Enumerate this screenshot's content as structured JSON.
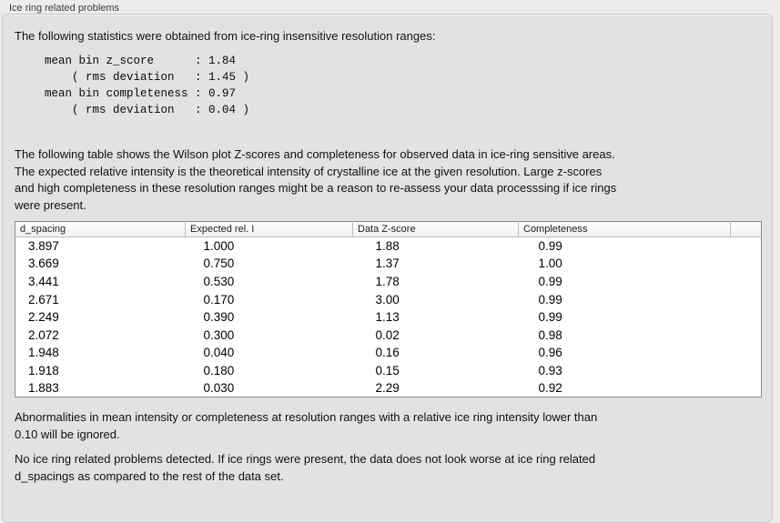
{
  "panel": {
    "title": "Ice ring related problems"
  },
  "colors": {
    "page_bg": "#ececec",
    "panel_bg": "#e2e2e2",
    "table_border": "#8b8b8b",
    "table_bg": "#ffffff"
  },
  "intro_text": "The following statistics were obtained from ice-ring insensitive resolution ranges:",
  "stats_block": "mean bin z_score      : 1.84\n    ( rms deviation   : 1.45 )\nmean bin completeness : 0.97\n    ( rms deviation   : 0.04 )",
  "stats": {
    "mean_bin_z_score": "1.84",
    "z_score_rms_deviation": "1.45",
    "mean_bin_completeness": "0.97",
    "completeness_rms_deviation": "0.04"
  },
  "table_description": "The following table shows the Wilson plot Z-scores and completeness for observed data in ice-ring sensitive areas.\nThe expected relative intensity is the theoretical intensity of crystalline ice at the given resolution. Large z-scores\nand high completeness in these resolution ranges might be a reason to re-assess your data processsing if ice rings\nwere present.",
  "table": {
    "columns": [
      "d_spacing",
      "Expected rel. I",
      "Data Z-score",
      "Completeness",
      ""
    ],
    "rows": [
      [
        "3.897",
        "1.000",
        "1.88",
        "0.99"
      ],
      [
        "3.669",
        "0.750",
        "1.37",
        "1.00"
      ],
      [
        "3.441",
        "0.530",
        "1.78",
        "0.99"
      ],
      [
        "2.671",
        "0.170",
        "3.00",
        "0.99"
      ],
      [
        "2.249",
        "0.390",
        "1.13",
        "0.99"
      ],
      [
        "2.072",
        "0.300",
        "0.02",
        "0.98"
      ],
      [
        "1.948",
        "0.040",
        "0.16",
        "0.96"
      ],
      [
        "1.918",
        "0.180",
        "0.15",
        "0.93"
      ],
      [
        "1.883",
        "0.030",
        "2.29",
        "0.92"
      ]
    ]
  },
  "notes": {
    "ignore_note": "Abnormalities in mean intensity or completeness at resolution ranges with a relative ice ring intensity lower than\n0.10 will be ignored.",
    "conclusion": "No ice ring related problems detected. If ice rings were present, the data does not look worse at ice ring related\nd_spacings as compared to the rest of the data set."
  }
}
